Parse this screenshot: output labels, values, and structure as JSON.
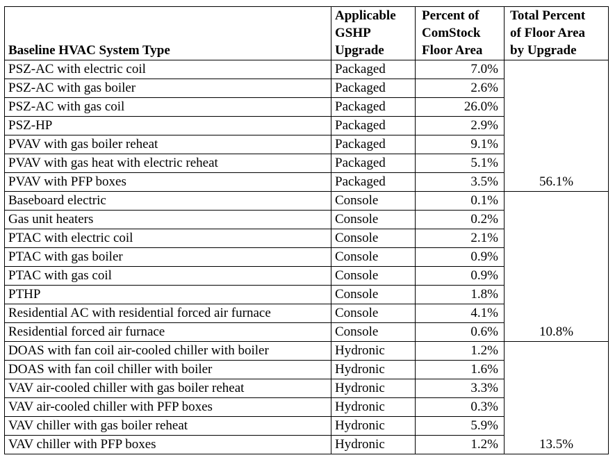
{
  "headers": {
    "type": "Baseline HVAC System Type",
    "upgrade_lines": [
      "Applicable",
      "GSHP",
      "Upgrade"
    ],
    "pct_lines": [
      "Percent of",
      "ComStock",
      "Floor Area"
    ],
    "tot_lines": [
      "Total Percent",
      "of Floor Area",
      "by Upgrade"
    ]
  },
  "groups": [
    {
      "total": "56.1%",
      "rows": [
        {
          "type": "PSZ-AC with electric coil",
          "upgrade": "Packaged",
          "pct": "7.0%"
        },
        {
          "type": "PSZ-AC with gas boiler",
          "upgrade": "Packaged",
          "pct": "2.6%"
        },
        {
          "type": "PSZ-AC with gas coil",
          "upgrade": "Packaged",
          "pct": "26.0%"
        },
        {
          "type": "PSZ-HP",
          "upgrade": "Packaged",
          "pct": "2.9%"
        },
        {
          "type": "PVAV with gas boiler reheat",
          "upgrade": "Packaged",
          "pct": "9.1%"
        },
        {
          "type": "PVAV with gas heat with electric reheat",
          "upgrade": "Packaged",
          "pct": "5.1%"
        },
        {
          "type": "PVAV with PFP boxes",
          "upgrade": "Packaged",
          "pct": "3.5%"
        }
      ]
    },
    {
      "total": "10.8%",
      "rows": [
        {
          "type": "Baseboard electric",
          "upgrade": "Console",
          "pct": "0.1%"
        },
        {
          "type": "Gas unit heaters",
          "upgrade": "Console",
          "pct": "0.2%"
        },
        {
          "type": "PTAC with electric coil",
          "upgrade": "Console",
          "pct": "2.1%"
        },
        {
          "type": "PTAC with gas boiler",
          "upgrade": "Console",
          "pct": "0.9%"
        },
        {
          "type": "PTAC with gas coil",
          "upgrade": "Console",
          "pct": "0.9%"
        },
        {
          "type": "PTHP",
          "upgrade": "Console",
          "pct": "1.8%"
        },
        {
          "type": "Residential AC with residential forced air furnace",
          "upgrade": "Console",
          "pct": "4.1%"
        },
        {
          "type": "Residential forced air furnace",
          "upgrade": "Console",
          "pct": "0.6%"
        }
      ]
    },
    {
      "total": "13.5%",
      "rows": [
        {
          "type": "DOAS with fan coil air-cooled chiller with boiler",
          "upgrade": "Hydronic",
          "pct": "1.2%"
        },
        {
          "type": "DOAS with fan coil chiller with boiler",
          "upgrade": "Hydronic",
          "pct": "1.6%"
        },
        {
          "type": "VAV air-cooled chiller with gas boiler reheat",
          "upgrade": "Hydronic",
          "pct": "3.3%"
        },
        {
          "type": "VAV air-cooled chiller with PFP boxes",
          "upgrade": "Hydronic",
          "pct": "0.3%"
        },
        {
          "type": "VAV chiller with gas boiler reheat",
          "upgrade": "Hydronic",
          "pct": "5.9%"
        },
        {
          "type": "VAV chiller with PFP boxes",
          "upgrade": "Hydronic",
          "pct": "1.2%"
        }
      ]
    }
  ]
}
